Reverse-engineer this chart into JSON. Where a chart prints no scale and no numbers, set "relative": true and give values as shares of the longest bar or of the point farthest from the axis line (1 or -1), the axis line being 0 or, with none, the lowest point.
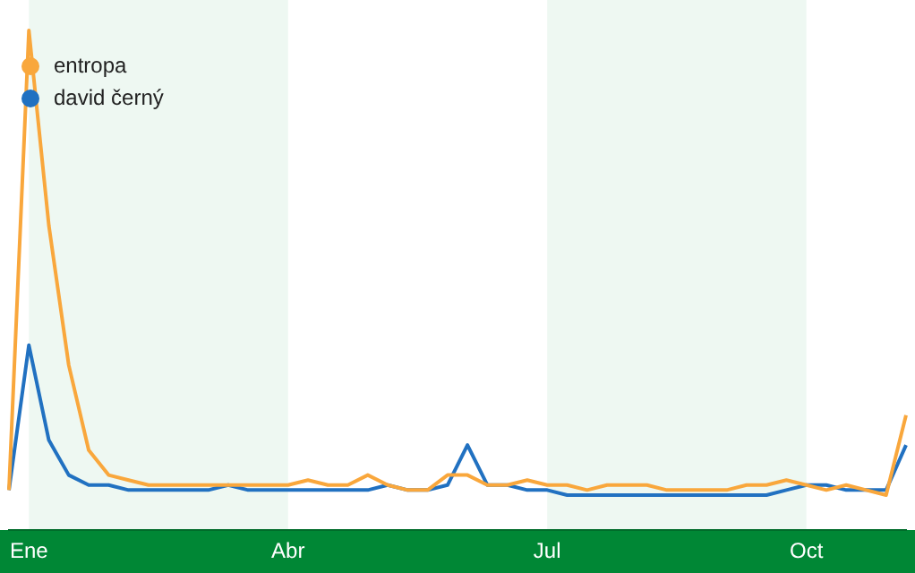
{
  "chart_data": {
    "type": "line",
    "relative": true,
    "legend": "top left",
    "grid": false,
    "categories": [
      null,
      "Ene",
      null,
      null,
      null,
      null,
      null,
      null,
      null,
      null,
      null,
      null,
      null,
      null,
      "Abr",
      null,
      null,
      null,
      null,
      null,
      null,
      null,
      null,
      null,
      null,
      null,
      null,
      "Jul",
      null,
      null,
      null,
      null,
      null,
      null,
      null,
      null,
      null,
      null,
      null,
      null,
      "Oct",
      null,
      null,
      null,
      null,
      null
    ],
    "bands": [
      {
        "axis": "x",
        "from": "Ene",
        "to": "Abr",
        "color": "#eef8f2"
      },
      {
        "axis": "x",
        "from": "Jul",
        "to": "Oct",
        "color": "#eef8f2"
      }
    ],
    "series": [
      {
        "name": "entropa",
        "color": "#f9a73c",
        "values": [
          0.08,
          1,
          0.61,
          0.33,
          0.16,
          0.11,
          0.1,
          0.09,
          0.09,
          0.09,
          0.09,
          0.09,
          0.09,
          0.09,
          0.09,
          0.1,
          0.09,
          0.09,
          0.11,
          0.09,
          0.08,
          0.08,
          0.11,
          0.11,
          0.09,
          0.09,
          0.1,
          0.09,
          0.09,
          0.08,
          0.09,
          0.09,
          0.09,
          0.08,
          0.08,
          0.08,
          0.08,
          0.09,
          0.09,
          0.1,
          0.09,
          0.08,
          0.09,
          0.08,
          0.07,
          0.23
        ]
      },
      {
        "name": "david černý",
        "color": "#2171c1",
        "values": [
          0.08,
          0.37,
          0.18,
          0.11,
          0.09,
          0.09,
          0.08,
          0.08,
          0.08,
          0.08,
          0.08,
          0.09,
          0.08,
          0.08,
          0.08,
          0.08,
          0.08,
          0.08,
          0.08,
          0.09,
          0.08,
          0.08,
          0.09,
          0.17,
          0.09,
          0.09,
          0.08,
          0.08,
          0.07,
          0.07,
          0.07,
          0.07,
          0.07,
          0.07,
          0.07,
          0.07,
          0.07,
          0.07,
          0.07,
          0.08,
          0.09,
          0.09,
          0.08,
          0.08,
          0.08,
          0.17
        ]
      }
    ]
  }
}
